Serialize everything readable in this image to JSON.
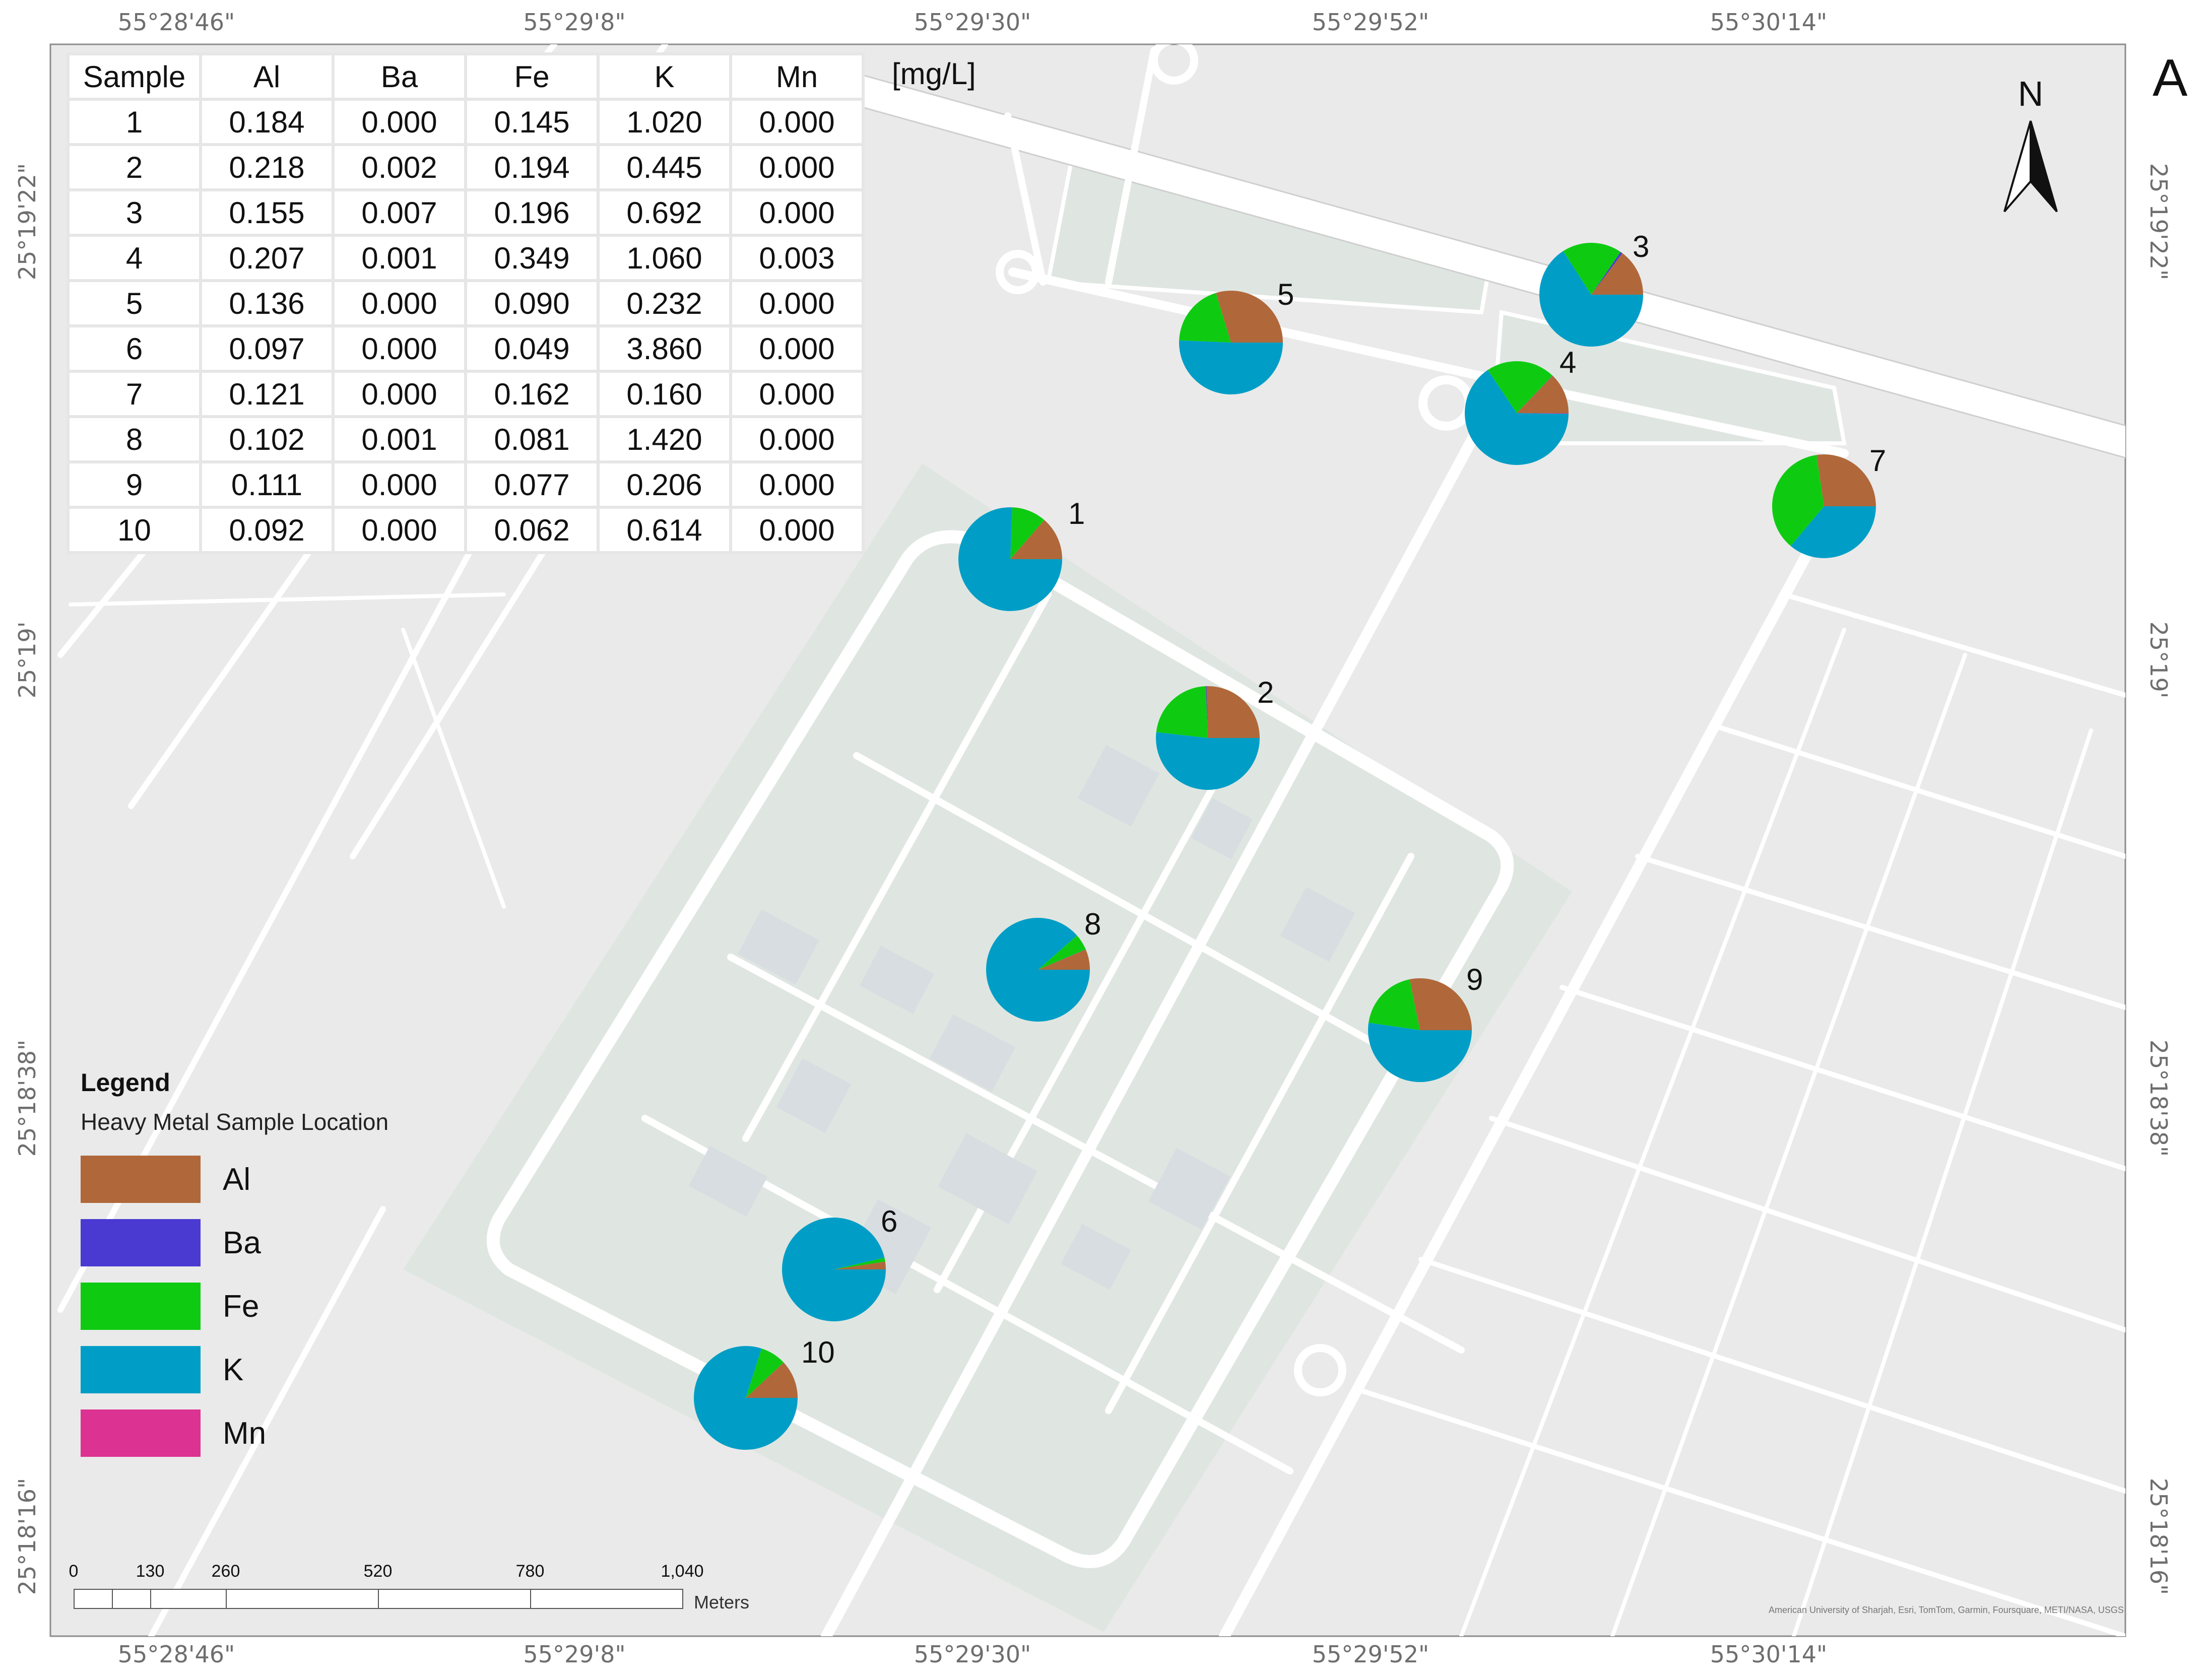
{
  "panel_letter": "A",
  "unit_label": "[mg/L]",
  "north_label": "N",
  "coords": {
    "top": [
      "55°28'46\"",
      "55°29'8\"",
      "55°29'30\"",
      "55°29'52\"",
      "55°30'14\""
    ],
    "bottom": [
      "55°28'46\"",
      "55°29'8\"",
      "55°29'30\"",
      "55°29'52\"",
      "55°30'14\""
    ],
    "left": [
      "25°19'22\"",
      "25°19'",
      "25°18'38\"",
      "25°18'16\""
    ],
    "right": [
      "25°19'22\"",
      "25°19'",
      "25°18'38\"",
      "25°18'16\""
    ]
  },
  "table": {
    "headers": [
      "Sample",
      "Al",
      "Ba",
      "Fe",
      "K",
      "Mn"
    ],
    "rows": [
      [
        "1",
        "0.184",
        "0.000",
        "0.145",
        "1.020",
        "0.000"
      ],
      [
        "2",
        "0.218",
        "0.002",
        "0.194",
        "0.445",
        "0.000"
      ],
      [
        "3",
        "0.155",
        "0.007",
        "0.196",
        "0.692",
        "0.000"
      ],
      [
        "4",
        "0.207",
        "0.001",
        "0.349",
        "1.060",
        "0.003"
      ],
      [
        "5",
        "0.136",
        "0.000",
        "0.090",
        "0.232",
        "0.000"
      ],
      [
        "6",
        "0.097",
        "0.000",
        "0.049",
        "3.860",
        "0.000"
      ],
      [
        "7",
        "0.121",
        "0.000",
        "0.162",
        "0.160",
        "0.000"
      ],
      [
        "8",
        "0.102",
        "0.001",
        "0.081",
        "1.420",
        "0.000"
      ],
      [
        "9",
        "0.111",
        "0.000",
        "0.077",
        "0.206",
        "0.000"
      ],
      [
        "10",
        "0.092",
        "0.000",
        "0.062",
        "0.614",
        "0.000"
      ]
    ]
  },
  "legend": {
    "title": "Legend",
    "subtitle": "Heavy Metal Sample Location",
    "items": [
      {
        "label": "Al",
        "color": "#b0683a"
      },
      {
        "label": "Ba",
        "color": "#4a3ad2"
      },
      {
        "label": "Fe",
        "color": "#0ecb12"
      },
      {
        "label": "K",
        "color": "#009ec6"
      },
      {
        "label": "Mn",
        "color": "#dc3291"
      }
    ]
  },
  "chart_data": {
    "type": "pie",
    "metals": [
      "Al",
      "Ba",
      "Fe",
      "K",
      "Mn"
    ],
    "colors": [
      "#b0683a",
      "#4a3ad2",
      "#0ecb12",
      "#009ec6",
      "#dc3291"
    ],
    "samples": [
      {
        "label": "1",
        "values": [
          0.184,
          0.0,
          0.145,
          1.02,
          0.0
        ]
      },
      {
        "label": "2",
        "values": [
          0.218,
          0.002,
          0.194,
          0.445,
          0.0
        ]
      },
      {
        "label": "3",
        "values": [
          0.155,
          0.007,
          0.196,
          0.692,
          0.0
        ]
      },
      {
        "label": "4",
        "values": [
          0.207,
          0.001,
          0.349,
          1.06,
          0.003
        ]
      },
      {
        "label": "5",
        "values": [
          0.136,
          0.0,
          0.09,
          0.232,
          0.0
        ]
      },
      {
        "label": "6",
        "values": [
          0.097,
          0.0,
          0.049,
          3.86,
          0.0
        ]
      },
      {
        "label": "7",
        "values": [
          0.121,
          0.0,
          0.162,
          0.16,
          0.0
        ]
      },
      {
        "label": "8",
        "values": [
          0.102,
          0.001,
          0.081,
          1.42,
          0.0
        ]
      },
      {
        "label": "9",
        "values": [
          0.111,
          0.0,
          0.077,
          0.206,
          0.0
        ]
      },
      {
        "label": "10",
        "values": [
          0.092,
          0.0,
          0.062,
          0.614,
          0.0
        ]
      }
    ]
  },
  "scalebar": {
    "ticks": [
      "0",
      "130",
      "260",
      "520",
      "780",
      "1,040"
    ],
    "unit": "Meters"
  },
  "attribution": "American University of Sharjah, Esri, TomTom, Garmin, Foursquare, METI/NASA, USGS"
}
